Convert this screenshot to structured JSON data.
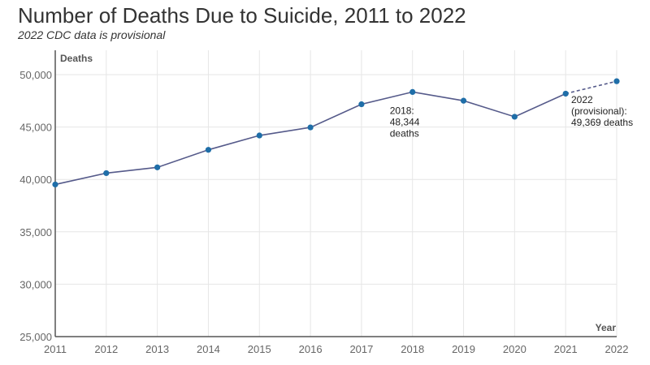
{
  "chart_data": {
    "type": "line",
    "title": "Number of Deaths Due to Suicide, 2011 to 2022",
    "subtitle": "2022 CDC data is provisional",
    "xlabel": "Year",
    "ylabel": "Deaths",
    "x": [
      2011,
      2012,
      2013,
      2014,
      2015,
      2016,
      2017,
      2018,
      2019,
      2020,
      2021,
      2022
    ],
    "series": [
      {
        "values": [
          39518,
          40600,
          41149,
          42826,
          44193,
          44965,
          47173,
          48344,
          47511,
          45979,
          48183,
          49369
        ],
        "color": "#1f6ea8",
        "line_color": "#555a8a",
        "provisional_from_index": 10
      }
    ],
    "xlim": [
      2011,
      2022
    ],
    "ylim": [
      25000,
      50000
    ],
    "yticks": [
      25000,
      30000,
      35000,
      40000,
      45000,
      50000
    ],
    "ytick_labels": [
      "25,000",
      "30,000",
      "35,000",
      "40,000",
      "45,000",
      "50,000"
    ],
    "xtick_labels": [
      "2011",
      "2012",
      "2013",
      "2014",
      "2015",
      "2016",
      "2017",
      "2018",
      "2019",
      "2020",
      "2021",
      "2022"
    ],
    "grid": true,
    "annotations": [
      {
        "x": 2018,
        "lines": [
          "2018:",
          "48,344",
          "deaths"
        ]
      },
      {
        "x": 2022,
        "lines": [
          "2022",
          "(provisional):",
          "49,369 deaths"
        ]
      }
    ]
  }
}
